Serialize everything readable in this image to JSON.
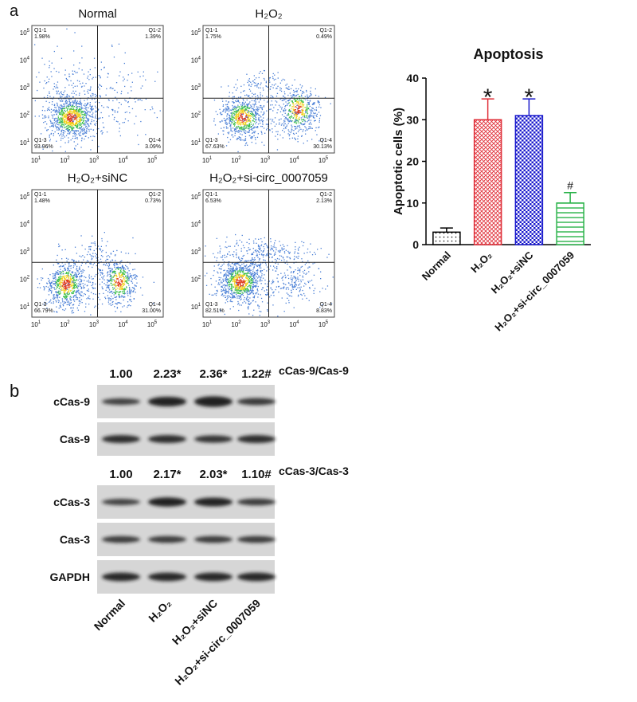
{
  "panel_labels": [
    "a",
    "b"
  ],
  "flow": {
    "axis_ticks": [
      {
        "base": "10",
        "exp": "1"
      },
      {
        "base": "10",
        "exp": "2"
      },
      {
        "base": "10",
        "exp": "3"
      },
      {
        "base": "10",
        "exp": "4"
      },
      {
        "base": "10",
        "exp": "5"
      }
    ],
    "plots": [
      {
        "title": "Normal",
        "quadrants": [
          {
            "name": "Q1-1",
            "pct": "1.98%"
          },
          {
            "name": "Q1-2",
            "pct": "1.39%"
          },
          {
            "name": "Q1-3",
            "pct": "93.96%"
          },
          {
            "name": "Q1-4",
            "pct": "3.09%"
          }
        ]
      },
      {
        "title": "H₂O₂",
        "quadrants": [
          {
            "name": "Q1-1",
            "pct": "1.75%"
          },
          {
            "name": "Q1-2",
            "pct": "0.49%"
          },
          {
            "name": "Q1-3",
            "pct": "67.63%"
          },
          {
            "name": "Q1-4",
            "pct": "30.13%"
          }
        ]
      },
      {
        "title": "H₂O₂+siNC",
        "quadrants": [
          {
            "name": "Q1-1",
            "pct": "1.48%"
          },
          {
            "name": "Q1-2",
            "pct": "0.73%"
          },
          {
            "name": "Q1-3",
            "pct": "66.79%"
          },
          {
            "name": "Q1-4",
            "pct": "31.00%"
          }
        ]
      },
      {
        "title": "H₂O₂+si-circ_0007059",
        "quadrants": [
          {
            "name": "Q1-1",
            "pct": "6.53%"
          },
          {
            "name": "Q1-2",
            "pct": "2.13%"
          },
          {
            "name": "Q1-3",
            "pct": "82.51%"
          },
          {
            "name": "Q1-4",
            "pct": "8.83%"
          }
        ]
      }
    ]
  },
  "chart_data": {
    "type": "bar",
    "title": "Apoptosis",
    "y_label": "Apoptotic cells (%)",
    "categories": [
      "Normal",
      "H₂O₂",
      "H₂O₂+siNC",
      "H₂O₂+si-circ_0007059"
    ],
    "values": [
      3,
      30,
      31,
      10
    ],
    "errors": [
      1,
      5,
      4,
      2.5
    ],
    "annotations": [
      null,
      "*",
      "*",
      "#"
    ],
    "colors": [
      "#000000",
      "#e0303a",
      "#1a1acc",
      "#2bb34a"
    ],
    "patterns": [
      "dots",
      "crosshatch",
      "checker",
      "hlines"
    ],
    "ylim": [
      0,
      40
    ],
    "yticks": [
      0,
      10,
      20,
      30,
      40
    ]
  },
  "blots": {
    "groups": [
      {
        "ratio_name": "cCas-9/Cas-9",
        "ratios": [
          "1.00",
          "2.23*",
          "2.36*",
          "1.22#"
        ],
        "rows": [
          "cCas-9",
          "Cas-9"
        ]
      },
      {
        "ratio_name": "cCas-3/Cas-3",
        "ratios": [
          "1.00",
          "2.17*",
          "2.03*",
          "1.10#"
        ],
        "rows": [
          "cCas-3",
          "Cas-3",
          "GAPDH"
        ]
      }
    ],
    "lanes": [
      "Normal",
      "H₂O₂",
      "H₂O₂+siNC",
      "H₂O₂+si-circ_0007059"
    ]
  }
}
